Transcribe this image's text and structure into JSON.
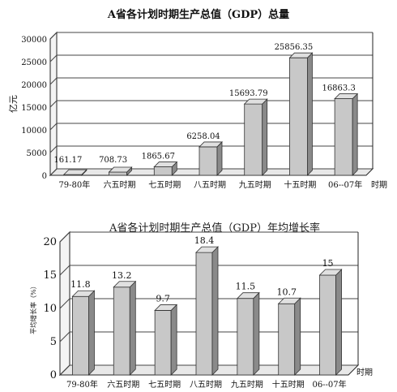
{
  "chart_data": [
    {
      "type": "bar",
      "title": "A省各计划时期生产总值（GDP）总量",
      "ylabel": "亿元",
      "xlabel": "时期",
      "ylim": [
        0,
        30000
      ],
      "yticks": [
        "0",
        "5000",
        "10000",
        "15000",
        "20000",
        "25000",
        "30000"
      ],
      "grid": true,
      "categories": [
        "79-80年",
        "六五时期",
        "七五时期",
        "八五时期",
        "九五时期",
        "十五时期",
        "06--07年"
      ],
      "values": [
        161.17,
        708.73,
        1865.67,
        6258.04,
        15693.79,
        25856.35,
        16863.3
      ],
      "data_labels": [
        "161.17",
        "708.73",
        "1865.67",
        "6258.04",
        "15693.79",
        "25856.35",
        "16863.3"
      ],
      "colors": {
        "bar": "#c8c8c8",
        "bar_side": "#8a8a8a",
        "grid": "#444444"
      }
    },
    {
      "type": "bar",
      "title": "A省各计划时期生产总值（GDP）年均增长率",
      "ylabel": "平均增长率（%）",
      "xlabel": "时期",
      "ylim": [
        0,
        20
      ],
      "yticks": [
        "0",
        "5",
        "10",
        "15",
        "20"
      ],
      "grid": true,
      "categories": [
        "79-80年",
        "六五时期",
        "七五时期",
        "八五时期",
        "九五时期",
        "十五时期",
        "06--07年"
      ],
      "values": [
        11.8,
        13.2,
        9.7,
        18.4,
        11.5,
        10.7,
        15
      ],
      "data_labels": [
        "11.8",
        "13.2",
        "9.7",
        "18.4",
        "11.5",
        "10.7",
        "15"
      ],
      "colors": {
        "bar": "#c8c8c8",
        "bar_side": "#8a8a8a",
        "grid": "#444444"
      }
    }
  ]
}
